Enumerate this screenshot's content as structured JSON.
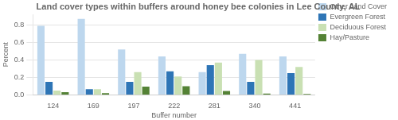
{
  "chart_data": {
    "type": "bar",
    "title": "Land cover types within buffers around honey bee colonies in Lee County, AL",
    "xlabel": "Buffer number",
    "ylabel": "Percent",
    "categories": [
      "124",
      "169",
      "197",
      "222",
      "281",
      "340",
      "441"
    ],
    "series": [
      {
        "name": "Other Land Cover",
        "color": "#bdd7ee",
        "values": [
          0.79,
          0.87,
          0.52,
          0.44,
          0.26,
          0.47,
          0.44
        ]
      },
      {
        "name": "Evergreen Forest",
        "color": "#2e75b6",
        "values": [
          0.15,
          0.065,
          0.15,
          0.27,
          0.34,
          0.15,
          0.25
        ]
      },
      {
        "name": "Deciduous Forest",
        "color": "#c9e0b3",
        "values": [
          0.05,
          0.065,
          0.26,
          0.21,
          0.37,
          0.4,
          0.32
        ]
      },
      {
        "name": "Hay/Pasture",
        "color": "#548235",
        "values": [
          0.03,
          0.02,
          0.095,
          0.1,
          0.045,
          0.015,
          0.01
        ]
      }
    ],
    "ylim": [
      0,
      0.92
    ],
    "yticks": [
      {
        "value": 0,
        "label": "0.0"
      },
      0.2,
      0.4,
      0.6,
      0.8
    ],
    "grid": true,
    "legend": "right"
  }
}
